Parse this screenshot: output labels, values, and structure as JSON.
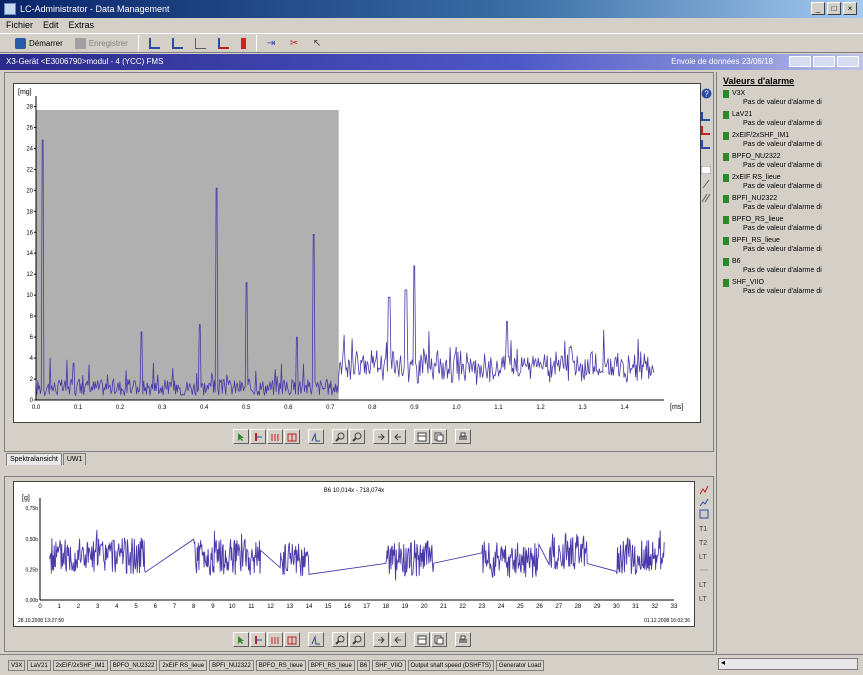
{
  "window": {
    "title": "LC-Administrator - Data Management"
  },
  "menu": [
    "Fichier",
    "Edit",
    "Extras"
  ],
  "toolbar": {
    "buttons": [
      {
        "label": "Démarrer",
        "icon": "start-icon",
        "disabled": false
      },
      {
        "label": "Enregistrer",
        "icon": "save-icon",
        "disabled": true
      }
    ],
    "icon_buttons": [
      "bar-chart-icon",
      "bar-chart-icon",
      "line-chart-icon",
      "trend-icon",
      "alarm-icon",
      "compress-icon",
      "expand-icon",
      "cursor-icon"
    ]
  },
  "document": {
    "header": "X3-Gerät <E3006790>modul - 4 (YCC) FMS",
    "right_text": "Envoie de données 23/06/18"
  },
  "chart_data": [
    {
      "type": "line",
      "title": "",
      "ylabel": "[mg]",
      "xlabel": "[ms]",
      "xlim": [
        0.0,
        1.47
      ],
      "ylim": [
        0,
        29
      ],
      "x_ticks": [
        "0.0",
        "0.1",
        "0.2",
        "0.3",
        "0.4",
        "0.5",
        "0.6",
        "0.7",
        "0.8",
        "0.9",
        "1.0",
        "1.1",
        "1.2",
        "1.3",
        "1.4"
      ],
      "y_ticks": [
        "0",
        "2",
        "4",
        "6",
        "8",
        "10",
        "12",
        "14",
        "16",
        "18",
        "20",
        "22",
        "24",
        "26",
        "28"
      ],
      "shaded_range": [
        0.0,
        0.72
      ],
      "color": "#4a3aa8",
      "peaks": [
        {
          "x": 0.015,
          "y": 24.8
        },
        {
          "x": 0.09,
          "y": 3.5
        },
        {
          "x": 0.25,
          "y": 6.5
        },
        {
          "x": 0.39,
          "y": 7.2
        },
        {
          "x": 0.43,
          "y": 20.2
        },
        {
          "x": 0.5,
          "y": 11.2
        },
        {
          "x": 0.62,
          "y": 6.0
        },
        {
          "x": 0.66,
          "y": 15.8
        },
        {
          "x": 0.84,
          "y": 9.8
        },
        {
          "x": 0.88,
          "y": 10.5
        },
        {
          "x": 0.9,
          "y": 12.8
        },
        {
          "x": 1.12,
          "y": 7.5
        },
        {
          "x": 1.27,
          "y": 5.0
        }
      ]
    },
    {
      "type": "line",
      "title": "B6   10,014x - 718,074x",
      "ylabel": "[g]",
      "xlabel": "",
      "xlim": [
        0,
        30
      ],
      "ylim": [
        0.0,
        0.8
      ],
      "x_ticks": [
        "0",
        "1",
        "2",
        "3",
        "4",
        "5",
        "6",
        "7",
        "8",
        "9",
        "10",
        "11",
        "12",
        "13",
        "14",
        "15",
        "16",
        "17",
        "18",
        "19",
        "20",
        "21",
        "22",
        "23",
        "24",
        "25",
        "26",
        "27",
        "28",
        "29",
        "30",
        "31",
        "32",
        "33"
      ],
      "y_ticks": [
        "0,00b",
        "0,25b",
        "0,50b",
        "0,75b"
      ],
      "start_label": "28.10.2008 13:27:50",
      "end_label": "01.12.2008 16:02:36",
      "color": "#4a3aa8",
      "segments": [
        {
          "from": 0.5,
          "to": 5.5,
          "level": 0.36
        },
        {
          "from": 8.0,
          "to": 11.5,
          "level": 0.35
        },
        {
          "from": 12.5,
          "to": 14.0,
          "level": 0.32
        },
        {
          "from": 18.0,
          "to": 20.5,
          "level": 0.34
        },
        {
          "from": 23.0,
          "to": 26.0,
          "level": 0.33
        },
        {
          "from": 26.5,
          "to": 28.5,
          "level": 0.4
        },
        {
          "from": 30.0,
          "to": 32.5,
          "level": 0.36
        }
      ]
    }
  ],
  "upper_tabs": [
    "Spektralansicht",
    "UW1"
  ],
  "alarm_panel": {
    "title": "Valeurs d'alarme",
    "items": [
      {
        "name": "V3X",
        "desc": "Pas de valeur d'alarme di"
      },
      {
        "name": "LaV21",
        "desc": "Pas de valeur d'alarme di"
      },
      {
        "name": "2xEIF/2xSHF_IM1",
        "desc": "Pas de valeur d'alarme di"
      },
      {
        "name": "BPFO_NU2322",
        "desc": "Pas de valeur d'alarme di"
      },
      {
        "name": "2xEIF RS_lieue",
        "desc": "Pas de valeur d'alarme di"
      },
      {
        "name": "BPFI_NU2322",
        "desc": "Pas de valeur d'alarme di"
      },
      {
        "name": "BPFO_RS_lieue",
        "desc": "Pas de valeur d'alarme di"
      },
      {
        "name": "BPFI_RS_lieue",
        "desc": "Pas de valeur d'alarme di"
      },
      {
        "name": "B6",
        "desc": "Pas de valeur d'alarme di"
      },
      {
        "name": "SHF_VIIO",
        "desc": "Pas de valeur d'alarme di"
      }
    ]
  },
  "status_tabs": [
    "V3X",
    "LaV21",
    "2xEIF/2xSHF_IM1",
    "BPFO_NU2322",
    "2xEIF RS_lieue",
    "BPFI_NU2322",
    "BPFO_RS_lieue",
    "BPFI_RS_lieue",
    "B6",
    "SHF_VIIO",
    "Output shaft speed (DSHFTS)",
    "Generator Load"
  ]
}
